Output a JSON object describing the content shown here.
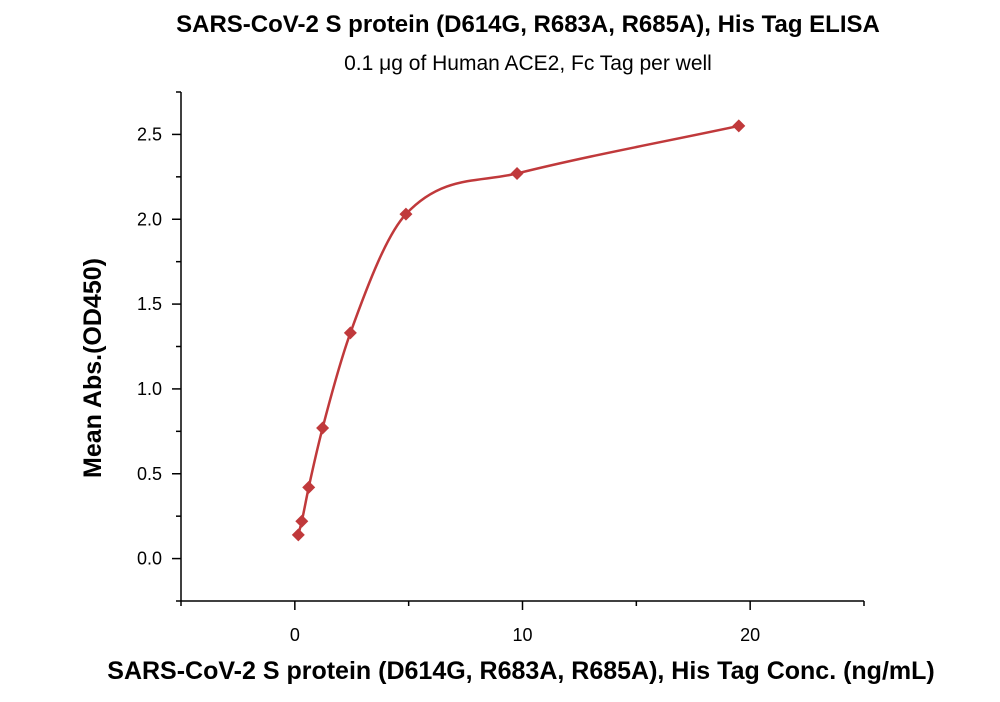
{
  "colors": {
    "series": "#c0393b",
    "axis": "#000000",
    "background": "#ffffff"
  },
  "chart_data": {
    "type": "scatter",
    "title": "SARS-CoV-2 S protein (D614G, R683A, R685A), His Tag ELISA",
    "subtitle": "0.1 μg of Human ACE2, Fc Tag per well",
    "xlabel": "SARS-CoV-2 S protein (D614G, R683A, R685A), His Tag Conc. (ng/mL)",
    "ylabel": "Mean Abs.(OD450)",
    "xlim": [
      -5,
      25
    ],
    "ylim": [
      -0.25,
      2.75
    ],
    "x_ticks": [
      0,
      10,
      20
    ],
    "x_tick_labels": [
      "0",
      "10",
      "20"
    ],
    "y_ticks": [
      0,
      0.5,
      1.0,
      1.5,
      2.0,
      2.5
    ],
    "y_tick_labels": [
      "0.0",
      "0.5",
      "1.0",
      "1.5",
      "2.0",
      "2.5"
    ],
    "grid": false,
    "marker": "diamond",
    "fit_line": true,
    "series": [
      {
        "x": [
          0.153,
          0.305,
          0.61,
          1.22,
          2.44,
          4.88,
          9.76,
          19.5
        ],
        "y": [
          0.14,
          0.22,
          0.42,
          0.77,
          1.33,
          2.03,
          2.27,
          2.55
        ]
      }
    ]
  }
}
